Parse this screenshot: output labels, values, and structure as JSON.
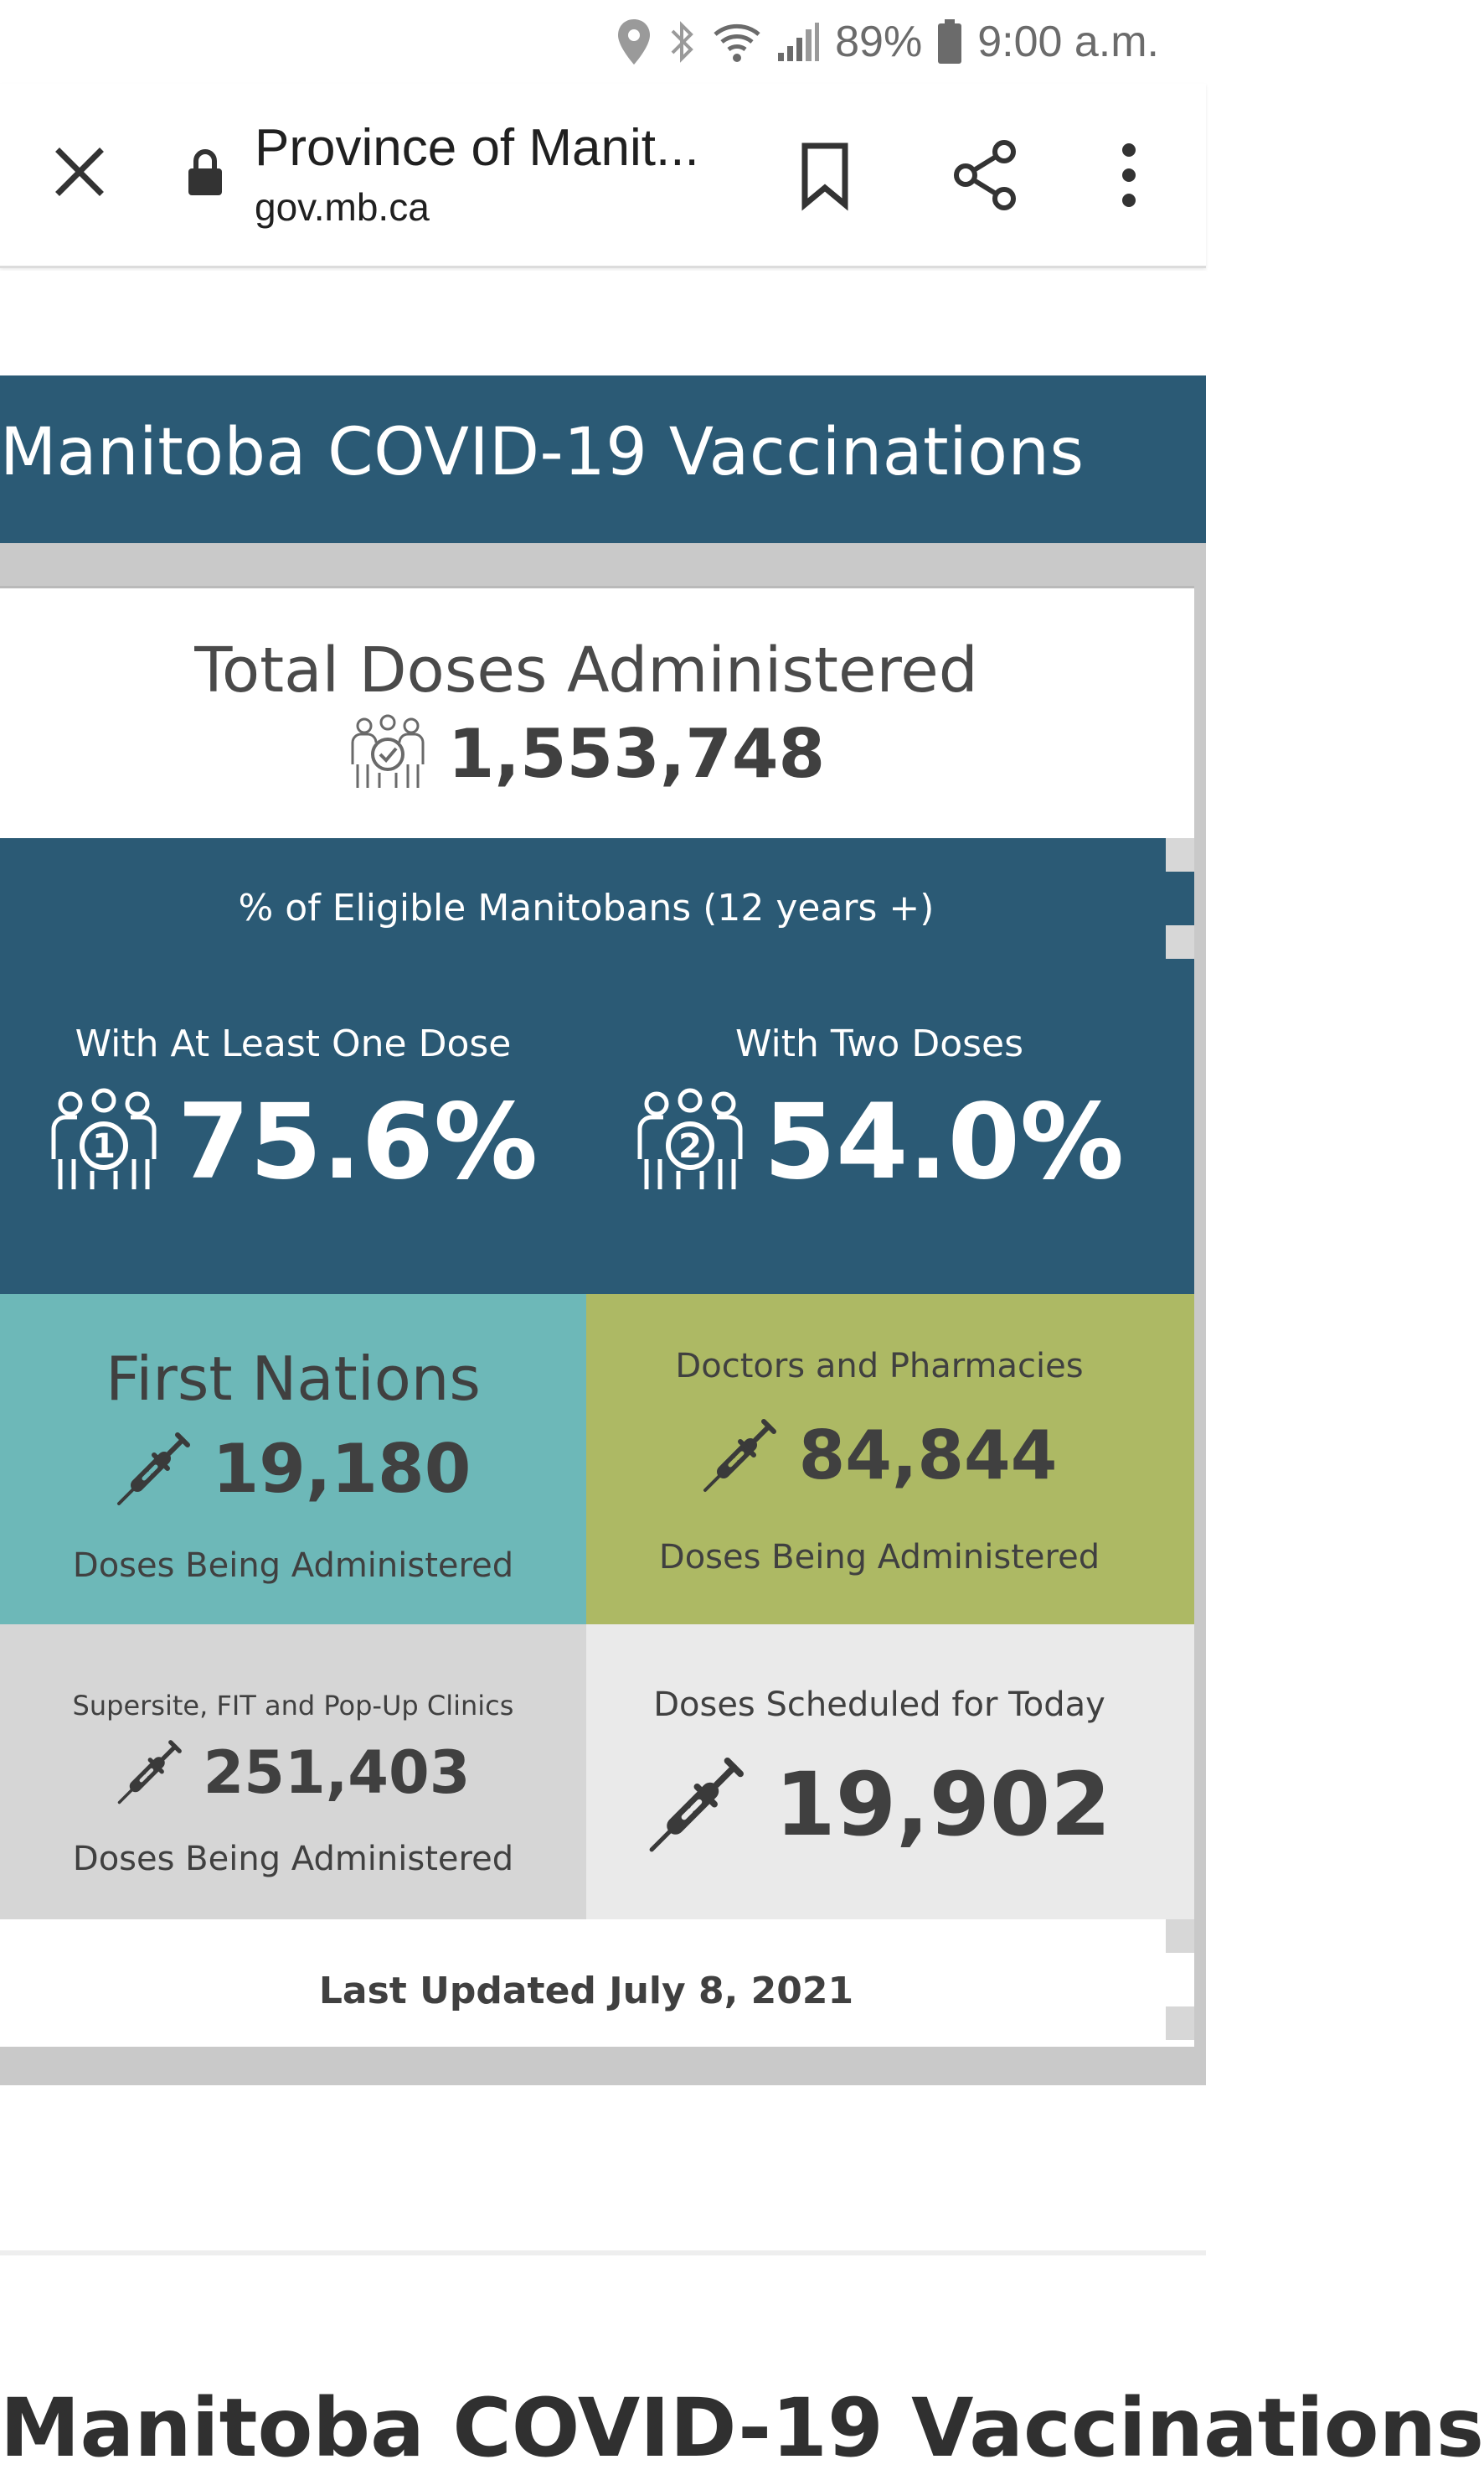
{
  "status_bar": {
    "battery_percent": "89%",
    "time": "9:00 a.m.",
    "icons": [
      "location-icon",
      "bluetooth-icon",
      "wifi-icon",
      "signal-icon",
      "battery-icon"
    ]
  },
  "browser": {
    "page_title": "Province of Manit...",
    "domain": "gov.mb.ca",
    "icons": [
      "close-icon",
      "lock-icon",
      "bookmark-icon",
      "share-icon",
      "more-vert-icon"
    ]
  },
  "dashboard": {
    "banner_title": "Manitoba COVID-19 Vaccinations",
    "total": {
      "heading": "Total Doses Administered",
      "value": "1,553,748",
      "icon": "group-check-icon"
    },
    "eligible": {
      "heading": "% of Eligible Manitobans (12 years +)",
      "one_dose": {
        "label": "With At Least One Dose",
        "value": "75.6%",
        "icon": "group-one-icon"
      },
      "two_doses": {
        "label": "With Two Doses",
        "value": "54.0%",
        "icon": "group-two-icon"
      }
    },
    "first_nations": {
      "title": "First Nations",
      "value": "19,180",
      "caption": "Doses Being Administered",
      "icon": "syringe-icon",
      "color": "#6db8b8"
    },
    "doctors": {
      "title": "Doctors and Pharmacies",
      "value": "84,844",
      "caption": "Doses Being Administered",
      "icon": "syringe-icon",
      "color": "#adb964"
    },
    "supersite": {
      "title": "Supersite, FIT and Pop-Up Clinics",
      "value": "251,403",
      "caption": "Doses Being Administered",
      "icon": "syringe-icon",
      "color": "#d6d6d6"
    },
    "scheduled": {
      "title": "Doses Scheduled for Today",
      "value": "19,902",
      "icon": "syringe-icon",
      "color": "#eaeaea"
    },
    "last_updated": "Last Updated July 8, 2021",
    "banner_color": "#2b5a75"
  },
  "next_section": {
    "title": "Manitoba COVID-19 Vaccinations"
  }
}
